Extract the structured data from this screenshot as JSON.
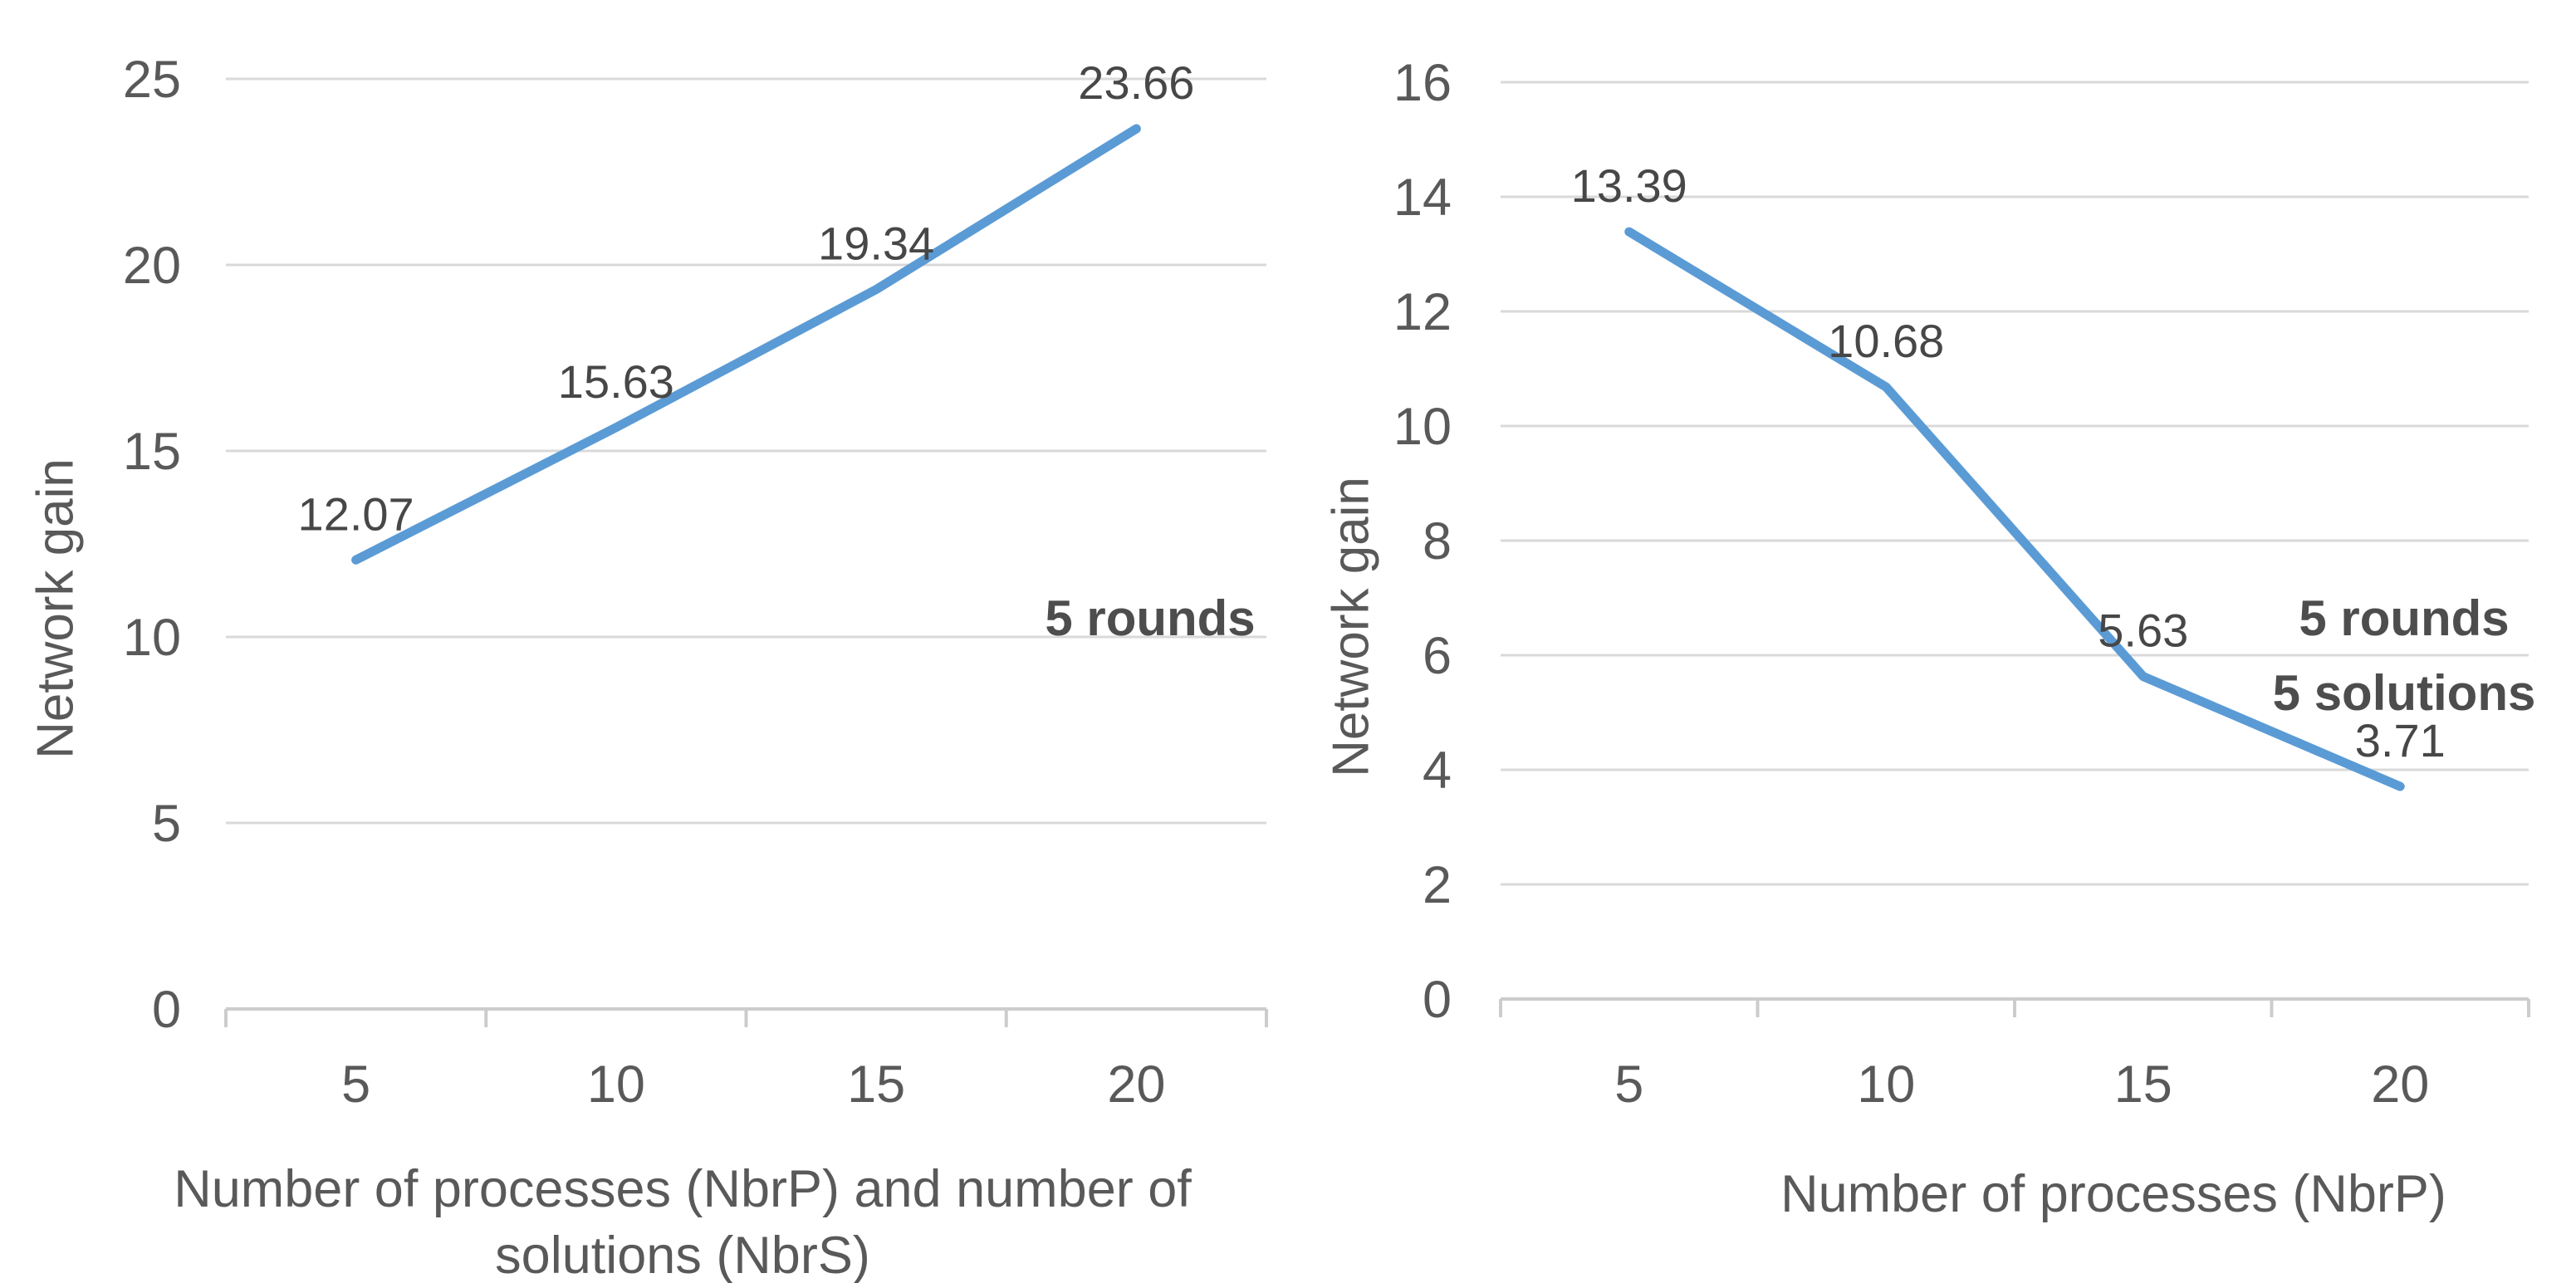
{
  "colors": {
    "line": "#5B9BD5",
    "gridline": "#D9D9D9",
    "axis_line": "#CCCCCC",
    "tick_label": "#595959",
    "data_label": "#474747",
    "annotation": "#4D4D4D",
    "axis_title": "#595959",
    "background": "#FFFFFF"
  },
  "chart_data": [
    {
      "type": "line",
      "title": "",
      "xlabel": "Number of processes (NbrP) and number of solutions (NbrS)",
      "xlabel_lines": [
        "Number of processes (NbrP) and number of",
        "solutions (NbrS)"
      ],
      "ylabel": "Network gain",
      "categories": [
        "5",
        "10",
        "15",
        "20"
      ],
      "values": [
        12.07,
        15.63,
        19.34,
        23.66
      ],
      "data_labels": [
        "12.07",
        "15.63",
        "19.34",
        "23.66"
      ],
      "yticks": [
        0,
        5,
        10,
        15,
        20,
        25
      ],
      "ylim": [
        0,
        25
      ],
      "annotation_lines": [
        "5 rounds"
      ],
      "legend": "none",
      "grid": "horizontal"
    },
    {
      "type": "line",
      "title": "",
      "xlabel": "Number of processes (NbrP)",
      "xlabel_lines": [
        "Number of processes (NbrP)"
      ],
      "ylabel": "Network gain",
      "categories": [
        "5",
        "10",
        "15",
        "20"
      ],
      "values": [
        13.39,
        10.68,
        5.63,
        3.71
      ],
      "data_labels": [
        "13.39",
        "10.68",
        "5.63",
        "3.71"
      ],
      "yticks": [
        0,
        2,
        4,
        6,
        8,
        10,
        12,
        14,
        16
      ],
      "ylim": [
        0,
        16
      ],
      "annotation_lines": [
        "5 rounds",
        "5 solutions"
      ],
      "legend": "none",
      "grid": "horizontal"
    }
  ]
}
